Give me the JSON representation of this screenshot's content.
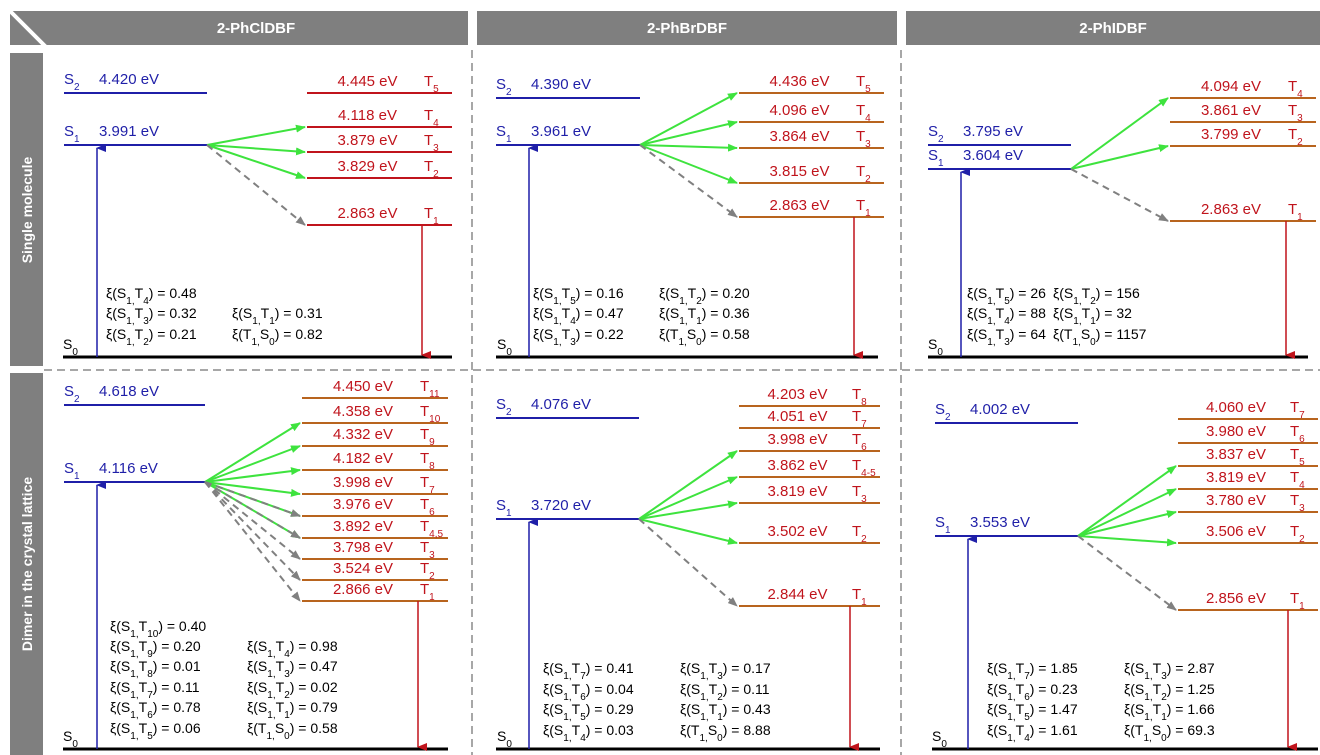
{
  "columns": [
    "2-PhClDBF",
    "2-PhBrDBF",
    "2-PhIDBF"
  ],
  "rows": [
    "Single molecule",
    "Dimer in the crystal lattice"
  ],
  "ground_label": "S0",
  "colors": {
    "singlet": "#1f1fa8",
    "triplet_text": "#c0141c",
    "triplet_line": "#b8641e",
    "arrow_green": "#3ee33e",
    "arrow_dashed": "#808080",
    "header_bg": "#7f7f7f"
  },
  "panels": [
    {
      "row": 0,
      "col": 0,
      "S2": "4.420 eV",
      "S1": "3.991 eV",
      "triplets": [
        {
          "label": "T5",
          "energy": "4.445 eV"
        },
        {
          "label": "T4",
          "energy": "4.118 eV"
        },
        {
          "label": "T3",
          "energy": "3.879 eV"
        },
        {
          "label": "T2",
          "energy": "3.829 eV"
        },
        {
          "label": "T1",
          "energy": "2.863 eV"
        }
      ],
      "green_to": [
        "T4",
        "T3",
        "T2"
      ],
      "dashed_to": [
        "T1"
      ],
      "xi_lines": [
        "ξ(S1,T4) = 0.48",
        "ξ(S1,T3) = 0.32   ξ(S1,T1) = 0.31",
        "ξ(S1,T2) = 0.21   ξ(T1,S0) = 0.82"
      ]
    },
    {
      "row": 0,
      "col": 1,
      "S2": "4.390 eV",
      "S1": "3.961 eV",
      "triplets": [
        {
          "label": "T5",
          "energy": "4.436 eV"
        },
        {
          "label": "T4",
          "energy": "4.096 eV"
        },
        {
          "label": "T3",
          "energy": "3.864 eV"
        },
        {
          "label": "T2",
          "energy": "3.815 eV"
        },
        {
          "label": "T1",
          "energy": "2.863 eV"
        }
      ],
      "green_to": [
        "T5",
        "T4",
        "T3",
        "T2"
      ],
      "dashed_to": [
        "T1"
      ],
      "xi_lines": [
        "ξ(S1,T5) = 0.16   ξ(S1,T2) = 0.20",
        "ξ(S1,T4) = 0.47   ξ(S1,T1) = 0.36",
        "ξ(S1,T3) = 0.22   ξ(T1,S0) = 0.58"
      ]
    },
    {
      "row": 0,
      "col": 2,
      "S2": "3.795 eV",
      "S1": "3.604 eV",
      "triplets": [
        {
          "label": "T4",
          "energy": "4.094 eV"
        },
        {
          "label": "T3",
          "energy": "3.861 eV"
        },
        {
          "label": "T2",
          "energy": "3.799 eV"
        },
        {
          "label": "T1",
          "energy": "2.863 eV"
        }
      ],
      "green_to": [
        "T4",
        "T2"
      ],
      "dashed_to": [
        "T1"
      ],
      "xi_lines": [
        "ξ(S1,T5) = 26   ξ(S1,T2) = 156",
        "ξ(S1,T4) = 88   ξ(S1,T1) = 32",
        "ξ(S1,T3) = 64   ξ(T1,S0) = 1157"
      ]
    },
    {
      "row": 1,
      "col": 0,
      "S2": "4.618 eV",
      "S1": "4.116 eV",
      "triplets": [
        {
          "label": "T11",
          "energy": "4.450 eV"
        },
        {
          "label": "T10",
          "energy": "4.358 eV"
        },
        {
          "label": "T9",
          "energy": "4.332 eV"
        },
        {
          "label": "T8",
          "energy": "4.182 eV"
        },
        {
          "label": "T7",
          "energy": "3.998 eV"
        },
        {
          "label": "T6",
          "energy": "3.976 eV"
        },
        {
          "label": "T4,5",
          "energy": "3.892 eV"
        },
        {
          "label": "T3",
          "energy": "3.798 eV"
        },
        {
          "label": "T2",
          "energy": "3.524 eV"
        },
        {
          "label": "T1",
          "energy": "2.866 eV"
        }
      ],
      "green_to": [
        "T10",
        "T9",
        "T8",
        "T7",
        "T6",
        "T4,5"
      ],
      "dashed_to": [
        "T6",
        "T4,5",
        "T3",
        "T2",
        "T1"
      ],
      "xi_lines": [
        "ξ(S1,T10) = 0.40",
        "ξ(S1,T9) = 0.20    ξ(S1,T4) = 0.98",
        "ξ(S1,T8) = 0.01    ξ(S1,T3) = 0.47",
        "ξ(S1,T7) = 0.11    ξ(S1,T2) = 0.02",
        "ξ(S1,T6) = 0.78    ξ(S1,T1) = 0.79",
        "ξ(S1,T5) = 0.06    ξ(T1,S0) = 0.58"
      ]
    },
    {
      "row": 1,
      "col": 1,
      "S2": "4.076 eV",
      "S1": "3.720 eV",
      "triplets": [
        {
          "label": "T8",
          "energy": "4.203 eV"
        },
        {
          "label": "T7",
          "energy": "4.051 eV"
        },
        {
          "label": "T6",
          "energy": "3.998 eV"
        },
        {
          "label": "T4-5",
          "energy": "3.862 eV"
        },
        {
          "label": "T3",
          "energy": "3.819 eV"
        },
        {
          "label": "T2",
          "energy": "3.502 eV"
        },
        {
          "label": "T1",
          "energy": "2.844 eV"
        }
      ],
      "green_to": [
        "T6",
        "T4-5",
        "T3",
        "T2"
      ],
      "dashed_to": [
        "T1"
      ],
      "xi_lines": [
        "ξ(S1,T7) = 0.41    ξ(S1,T3) = 0.17",
        "ξ(S1,T6) = 0.04    ξ(S1,T2) = 0.11",
        "ξ(S1,T5) = 0.29    ξ(S1,T1) = 0.43",
        "ξ(S1,T4) = 0.03    ξ(T1,S0) = 8.88"
      ]
    },
    {
      "row": 1,
      "col": 2,
      "S2": "4.002 eV",
      "S1": "3.553 eV",
      "triplets": [
        {
          "label": "T7",
          "energy": "4.060 eV"
        },
        {
          "label": "T6",
          "energy": "3.980 eV"
        },
        {
          "label": "T5",
          "energy": "3.837 eV"
        },
        {
          "label": "T4",
          "energy": "3.819 eV"
        },
        {
          "label": "T3",
          "energy": "3.780 eV"
        },
        {
          "label": "T2",
          "energy": "3.506 eV"
        },
        {
          "label": "T1",
          "energy": "2.856 eV"
        }
      ],
      "green_to": [
        "T5",
        "T4",
        "T3",
        "T2"
      ],
      "dashed_to": [
        "T1"
      ],
      "xi_lines": [
        "ξ(S1,T7) = 1.85    ξ(S1,T3) = 2.87",
        "ξ(S1,T6) = 0.23    ξ(S1,T2) = 1.25",
        "ξ(S1,T5) = 1.47    ξ(S1,T1) = 1.66",
        "ξ(S1,T4) = 1.61    ξ(T1,S0) = 69.3"
      ]
    }
  ]
}
